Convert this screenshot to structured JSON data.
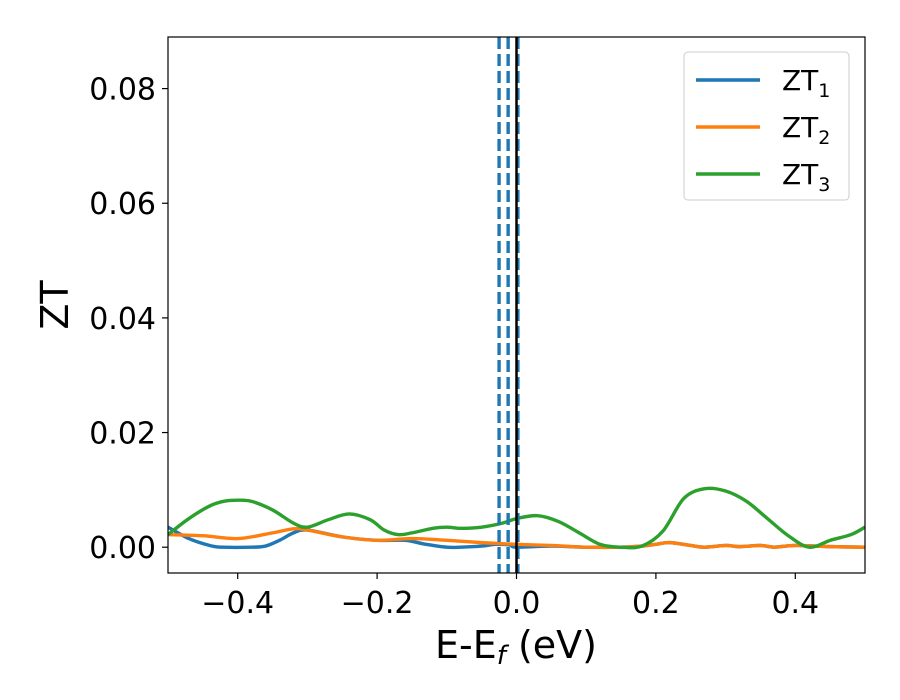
{
  "chart_data": {
    "type": "line",
    "xlabel": "E-E",
    "xlabel_sub": "f",
    "xlabel_unit": " (eV)",
    "ylabel": "ZT",
    "xlim": [
      -0.5,
      0.5
    ],
    "ylim": [
      -0.0045,
      0.089
    ],
    "xticks": [
      -0.4,
      -0.2,
      0.0,
      0.2,
      0.4
    ],
    "xtick_labels": [
      "−0.4",
      "−0.2",
      "0.0",
      "0.2",
      "0.4"
    ],
    "yticks": [
      0.0,
      0.02,
      0.04,
      0.06,
      0.08
    ],
    "ytick_labels": [
      "0.00",
      "0.02",
      "0.04",
      "0.06",
      "0.08"
    ],
    "grid": false,
    "legend_position": "top-right",
    "series": [
      {
        "name": "ZT",
        "name_sub": "1",
        "color": "#1f77b4",
        "x": [
          -0.5,
          -0.47,
          -0.44,
          -0.42,
          -0.38,
          -0.36,
          -0.34,
          -0.32,
          -0.3,
          -0.25,
          -0.2,
          -0.16,
          -0.13,
          -0.1,
          -0.08,
          -0.05,
          -0.03,
          -0.01,
          0.0,
          0.05,
          0.1,
          0.15,
          0.18,
          0.2,
          0.22,
          0.25,
          0.27,
          0.3,
          0.32,
          0.35,
          0.37,
          0.4,
          0.45,
          0.5
        ],
        "y": [
          0.0035,
          0.0015,
          0.0003,
          0.0,
          0.0,
          0.0002,
          0.0012,
          0.0025,
          0.003,
          0.0018,
          0.0012,
          0.0012,
          0.0005,
          0.0,
          0.0,
          0.0002,
          0.0005,
          0.0004,
          0.0,
          0.0002,
          0.0,
          0.0,
          0.0002,
          0.0005,
          0.0008,
          0.0003,
          0.0,
          0.0003,
          0.0001,
          0.0003,
          0.0,
          0.0003,
          0.0001,
          0.0
        ]
      },
      {
        "name": "ZT",
        "name_sub": "2",
        "color": "#ff7f0e",
        "x": [
          -0.5,
          -0.45,
          -0.4,
          -0.35,
          -0.32,
          -0.3,
          -0.25,
          -0.2,
          -0.15,
          -0.1,
          -0.05,
          0.0,
          0.05,
          0.1,
          0.15,
          0.18,
          0.2,
          0.22,
          0.25,
          0.27,
          0.3,
          0.32,
          0.35,
          0.37,
          0.4,
          0.45,
          0.5
        ],
        "y": [
          0.0022,
          0.002,
          0.0015,
          0.0025,
          0.0032,
          0.003,
          0.0018,
          0.0012,
          0.0015,
          0.0012,
          0.0008,
          0.0005,
          0.0003,
          0.0,
          0.0,
          0.0002,
          0.0005,
          0.0008,
          0.0003,
          0.0,
          0.0003,
          0.0001,
          0.0003,
          0.0,
          0.0003,
          0.0001,
          0.0
        ]
      },
      {
        "name": "ZT",
        "name_sub": "3",
        "color": "#2ca02c",
        "x": [
          -0.5,
          -0.47,
          -0.44,
          -0.42,
          -0.4,
          -0.38,
          -0.35,
          -0.32,
          -0.3,
          -0.27,
          -0.24,
          -0.21,
          -0.19,
          -0.17,
          -0.15,
          -0.12,
          -0.1,
          -0.08,
          -0.05,
          -0.02,
          0.0,
          0.03,
          0.06,
          0.09,
          0.12,
          0.15,
          0.18,
          0.21,
          0.24,
          0.27,
          0.3,
          0.33,
          0.36,
          0.39,
          0.42,
          0.45,
          0.48,
          0.5
        ],
        "y": [
          0.0022,
          0.005,
          0.0072,
          0.008,
          0.0082,
          0.008,
          0.0065,
          0.0042,
          0.0035,
          0.0048,
          0.0058,
          0.0048,
          0.003,
          0.0022,
          0.0025,
          0.0033,
          0.0035,
          0.0033,
          0.0035,
          0.0042,
          0.005,
          0.0055,
          0.0045,
          0.0025,
          0.0005,
          0.0,
          0.0002,
          0.0028,
          0.0085,
          0.0102,
          0.0098,
          0.008,
          0.005,
          0.002,
          0.0,
          0.0012,
          0.0022,
          0.0035
        ]
      }
    ],
    "vlines": [
      {
        "x": -0.025,
        "style": "dashed",
        "color": "#1f77b4"
      },
      {
        "x": -0.012,
        "style": "dashed",
        "color": "#1f77b4"
      },
      {
        "x": 0.002,
        "style": "dashed",
        "color": "#1f77b4"
      },
      {
        "x": 0.0,
        "style": "solid",
        "color": "#000000"
      }
    ]
  }
}
